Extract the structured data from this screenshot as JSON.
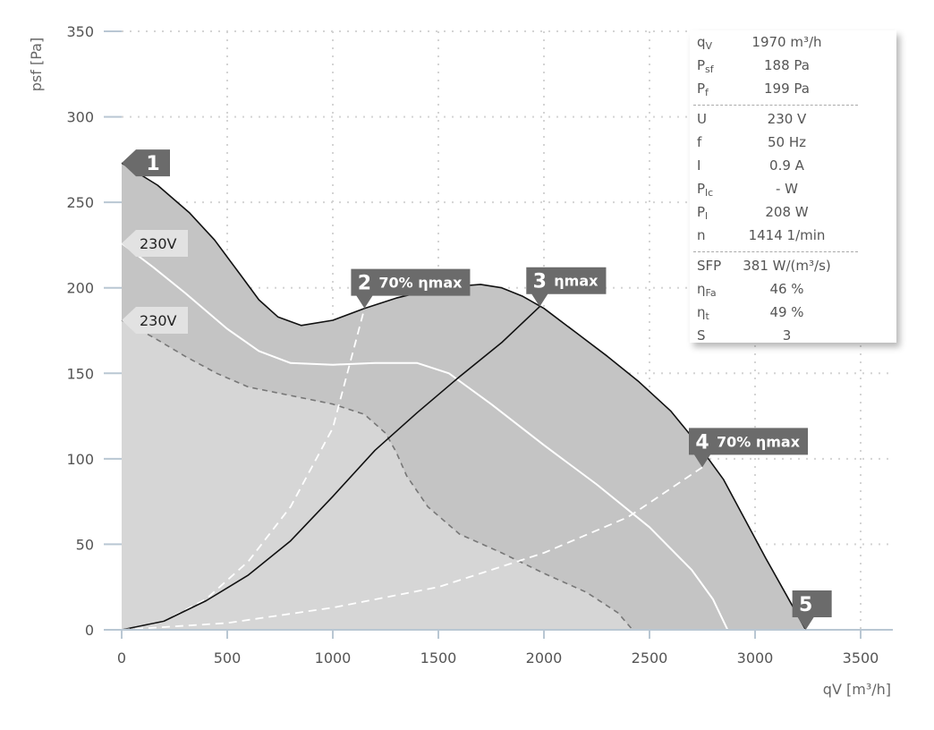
{
  "chart_data": {
    "type": "area",
    "xlabel": "qV [m³/h]",
    "ylabel": "psf [Pa]",
    "xlim": [
      0,
      3500
    ],
    "ylim": [
      0,
      350
    ],
    "x_ticks": [
      0,
      500,
      1000,
      1500,
      2000,
      2500,
      3000,
      3500
    ],
    "y_ticks": [
      0,
      50,
      100,
      150,
      200,
      250,
      300,
      350
    ],
    "grid": true,
    "colors": {
      "outer_area": "#c4c4c4",
      "inner_area": "#d6d6d6",
      "marker": "#6b6b6b"
    },
    "series": [
      {
        "role": "max-envelope",
        "style": "solid-black",
        "points": [
          [
            0,
            273
          ],
          [
            170,
            260
          ],
          [
            320,
            244
          ],
          [
            440,
            228
          ],
          [
            560,
            208
          ],
          [
            650,
            193
          ],
          [
            740,
            183
          ],
          [
            850,
            178
          ],
          [
            1000,
            181
          ],
          [
            1150,
            188
          ],
          [
            1300,
            194
          ],
          [
            1500,
            200
          ],
          [
            1700,
            202
          ],
          [
            1800,
            200
          ],
          [
            1900,
            195
          ],
          [
            2000,
            188
          ],
          [
            2150,
            174
          ],
          [
            2300,
            160
          ],
          [
            2450,
            145
          ],
          [
            2600,
            128
          ],
          [
            2720,
            110
          ],
          [
            2850,
            88
          ],
          [
            2950,
            65
          ],
          [
            3050,
            42
          ],
          [
            3150,
            20
          ],
          [
            3240,
            0
          ]
        ]
      },
      {
        "label": "230V",
        "style": "solid-white",
        "points": [
          [
            0,
            226
          ],
          [
            150,
            212
          ],
          [
            300,
            197
          ],
          [
            500,
            176
          ],
          [
            650,
            163
          ],
          [
            800,
            156
          ],
          [
            1000,
            155
          ],
          [
            1200,
            156
          ],
          [
            1400,
            156
          ],
          [
            1550,
            150
          ],
          [
            1750,
            132
          ],
          [
            2000,
            108
          ],
          [
            2250,
            85
          ],
          [
            2500,
            60
          ],
          [
            2700,
            35
          ],
          [
            2800,
            18
          ],
          [
            2870,
            0
          ]
        ]
      },
      {
        "label": "230V",
        "style": "dashed-grey",
        "points": [
          [
            0,
            181
          ],
          [
            150,
            171
          ],
          [
            300,
            160
          ],
          [
            450,
            150
          ],
          [
            600,
            142
          ],
          [
            800,
            137
          ],
          [
            1000,
            132
          ],
          [
            1150,
            126
          ],
          [
            1250,
            115
          ],
          [
            1300,
            104
          ],
          [
            1350,
            90
          ],
          [
            1450,
            72
          ],
          [
            1600,
            56
          ],
          [
            1800,
            45
          ],
          [
            2000,
            33
          ],
          [
            2200,
            22
          ],
          [
            2350,
            10
          ],
          [
            2420,
            0
          ]
        ]
      },
      {
        "label": "70% ηmax",
        "style": "dashed-white",
        "points": [
          [
            0,
            0
          ],
          [
            200,
            5
          ],
          [
            400,
            18
          ],
          [
            600,
            40
          ],
          [
            800,
            72
          ],
          [
            1000,
            118
          ],
          [
            1150,
            188
          ]
        ]
      },
      {
        "label": "ηmax",
        "style": "solid-black",
        "points": [
          [
            0,
            0
          ],
          [
            200,
            5
          ],
          [
            400,
            17
          ],
          [
            600,
            32
          ],
          [
            800,
            52
          ],
          [
            1000,
            78
          ],
          [
            1200,
            105
          ],
          [
            1400,
            127
          ],
          [
            1600,
            148
          ],
          [
            1800,
            168
          ],
          [
            1980,
            189
          ]
        ]
      },
      {
        "label": "70% ηmax",
        "style": "dashed-white",
        "points": [
          [
            0,
            0
          ],
          [
            500,
            4
          ],
          [
            1000,
            13
          ],
          [
            1500,
            25
          ],
          [
            2000,
            45
          ],
          [
            2400,
            66
          ],
          [
            2750,
            95
          ]
        ]
      }
    ],
    "markers": [
      {
        "num": "1",
        "text": "",
        "x": 0,
        "y": 273
      },
      {
        "num": "2",
        "text": "70% ηmax",
        "x": 1150,
        "y": 188
      },
      {
        "num": "3",
        "text": "ηmax",
        "x": 1980,
        "y": 189
      },
      {
        "num": "4",
        "text": "70% ηmax",
        "x": 2750,
        "y": 95
      },
      {
        "num": "5",
        "text": "",
        "x": 3240,
        "y": 0
      }
    ],
    "curve_labels": [
      {
        "text": "230V",
        "x": 0,
        "y": 226
      },
      {
        "text": "230V",
        "x": 0,
        "y": 181
      }
    ]
  },
  "info_panel": {
    "rows": [
      {
        "key": "q",
        "sub": "V",
        "value": "1970 m³/h"
      },
      {
        "key": "P",
        "sub": "sf",
        "value": "188 Pa"
      },
      {
        "key": "P",
        "sub": "f",
        "value": "199 Pa"
      },
      {
        "separator": true
      },
      {
        "key": "U",
        "sub": "",
        "value": "230 V"
      },
      {
        "key": "f",
        "sub": "",
        "value": "50 Hz"
      },
      {
        "key": "I",
        "sub": "",
        "value": "0.9 A"
      },
      {
        "key": "P",
        "sub": "lc",
        "value": "- W"
      },
      {
        "key": "P",
        "sub": "l",
        "value": "208 W"
      },
      {
        "key": "n",
        "sub": "",
        "value": "1414 1/min"
      },
      {
        "separator": true
      },
      {
        "key": "SFP",
        "sub": "",
        "value": "381 W/(m³/s)"
      },
      {
        "key": "η",
        "sub": "Fa",
        "value": "46 %"
      },
      {
        "key": "η",
        "sub": "t",
        "value": "49 %"
      },
      {
        "key": "S",
        "sub": "",
        "value": "3"
      }
    ]
  }
}
